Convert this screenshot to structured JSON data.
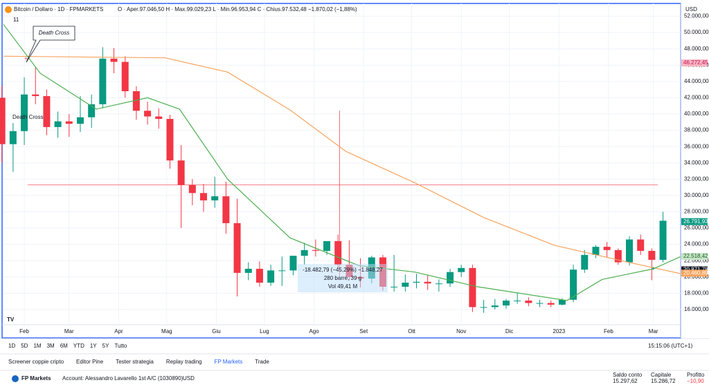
{
  "header": {
    "symbol": "Bitcoin / Dollaro · 1D · FPMARKETS",
    "ohlc": "O · Aper.97.046,50  H · Max.99.029,23  L · Min.96.953,94  C · Chius.97.532,48  −1.870,02 (−1,88%)",
    "indicators": "11",
    "currency": "USD"
  },
  "toolbar": {
    "ranges": [
      "1D",
      "5D",
      "1M",
      "3M",
      "6M",
      "YTD",
      "1Y",
      "5Y",
      "Tutto"
    ],
    "time": "15:15:06 (UTC+1)"
  },
  "tabs": [
    "Screener coppie cripto",
    "Editor Pine",
    "Tester strategia",
    "Replay trading",
    "FP Markets",
    "Trade"
  ],
  "account": {
    "broker": "FP Markets",
    "name": "Account: Alessandro Lavarello 1st A/C (1030890)",
    "currency": "USD",
    "fields": [
      {
        "label": "Saldo conto",
        "value": "15.297,62"
      },
      {
        "label": "Capitale",
        "value": "15.286,72"
      },
      {
        "label": "Profitto",
        "value": "−10,90"
      }
    ]
  },
  "chart_data": {
    "type": "candlestick",
    "up_color": "#089981",
    "down_color": "#f23645",
    "xlim": [
      18,
      441
    ],
    "ylim": [
      14550,
      52300
    ],
    "xticks": [
      {
        "value": 31,
        "label": "Feb"
      },
      {
        "value": 59,
        "label": "Mar"
      },
      {
        "value": 90,
        "label": "Apr"
      },
      {
        "value": 120,
        "label": "Mag"
      },
      {
        "value": 151,
        "label": "Giu"
      },
      {
        "value": 181,
        "label": "Lug"
      },
      {
        "value": 212,
        "label": "Ago"
      },
      {
        "value": 243,
        "label": "Set"
      },
      {
        "value": 273,
        "label": "Ott"
      },
      {
        "value": 304,
        "label": "Nov"
      },
      {
        "value": 334,
        "label": "Dic"
      },
      {
        "value": 365,
        "label": "2023"
      },
      {
        "value": 396,
        "label": "Feb"
      },
      {
        "value": 424,
        "label": "Mar"
      }
    ],
    "yticks": [
      {
        "value": 16000,
        "label": "16.000,00"
      },
      {
        "value": 18000,
        "label": "18.000,00"
      },
      {
        "value": 20000,
        "label": "20.000,00"
      },
      {
        "value": 22000,
        "label": "22.000,00"
      },
      {
        "value": 24000,
        "label": "24.000,00"
      },
      {
        "value": 26000,
        "label": "26.000,00"
      },
      {
        "value": 28000,
        "label": "28.000,00"
      },
      {
        "value": 30000,
        "label": "30.000,00"
      },
      {
        "value": 32000,
        "label": "32.000,00"
      },
      {
        "value": 34000,
        "label": "34.000,00"
      },
      {
        "value": 36000,
        "label": "36.000,00"
      },
      {
        "value": 38000,
        "label": "38.000,00"
      },
      {
        "value": 40000,
        "label": "40.000,00"
      },
      {
        "value": 42000,
        "label": "42.000,00"
      },
      {
        "value": 44000,
        "label": "44.000,00"
      },
      {
        "value": 46000,
        "label": "46.000,00"
      },
      {
        "value": 48000,
        "label": "48.000,00"
      },
      {
        "value": 50000,
        "label": "50.000,00"
      },
      {
        "value": 52000,
        "label": "52.000,00"
      }
    ],
    "grid": true,
    "x": [
      17,
      24,
      31,
      38,
      45,
      52,
      59,
      66,
      73,
      80,
      87,
      94,
      101,
      108,
      115,
      122,
      129,
      136,
      143,
      150,
      157,
      164,
      171,
      178,
      185,
      192,
      199,
      206,
      213,
      220,
      227,
      234,
      241,
      248,
      255,
      262,
      269,
      276,
      283,
      290,
      297,
      304,
      311,
      318,
      325,
      332,
      339,
      346,
      353,
      360,
      367,
      374,
      381,
      388,
      395,
      402,
      409,
      416,
      423,
      430
    ],
    "open": [
      42000,
      36300,
      37900,
      42400,
      42200,
      38400,
      39100,
      38800,
      39600,
      41200,
      46800,
      46400,
      42800,
      40400,
      39700,
      39400,
      34300,
      31300,
      30300,
      29400,
      29900,
      26600,
      20500,
      21000,
      19300,
      20800,
      20800,
      22600,
      23300,
      23200,
      24400,
      21500,
      20000,
      19800,
      22400,
      18800,
      18800,
      19300,
      19400,
      19200,
      19200,
      20600,
      21100,
      16300,
      16300,
      16500,
      17100,
      17100,
      16800,
      16800,
      16600,
      17200,
      20900,
      22700,
      23700,
      23300,
      21800,
      24600,
      23200,
      22100
    ],
    "high": [
      43500,
      38900,
      44500,
      45700,
      43000,
      40300,
      40000,
      42200,
      42400,
      48200,
      48100,
      47100,
      43400,
      41500,
      40700,
      39900,
      36200,
      32000,
      31400,
      32300,
      31700,
      29600,
      21800,
      21900,
      21500,
      22500,
      22500,
      24200,
      24600,
      24200,
      25200,
      24500,
      22300,
      22600,
      22700,
      22700,
      20300,
      20400,
      20200,
      19700,
      21000,
      21500,
      21500,
      17200,
      17300,
      17300,
      18000,
      17500,
      17200,
      17100,
      17400,
      21500,
      23300,
      23900,
      24300,
      23500,
      25000,
      25200,
      23500,
      28000
    ],
    "low": [
      34000,
      32900,
      36200,
      41200,
      37400,
      37100,
      37200,
      37800,
      38300,
      40700,
      45000,
      42000,
      39300,
      38700,
      38200,
      33300,
      26000,
      28800,
      28000,
      28500,
      25300,
      17600,
      19600,
      18800,
      18900,
      18900,
      20200,
      21500,
      22500,
      22700,
      21000,
      19600,
      18700,
      19200,
      18300,
      18200,
      18200,
      18600,
      18400,
      18200,
      18800,
      20000,
      15700,
      15600,
      16000,
      16100,
      16700,
      16400,
      16300,
      16300,
      16500,
      16900,
      20500,
      22300,
      22400,
      21500,
      21400,
      22700,
      19600,
      21800
    ],
    "close": [
      36300,
      37900,
      42400,
      42200,
      38400,
      39100,
      38800,
      39600,
      41200,
      46800,
      46400,
      42800,
      40400,
      39700,
      39400,
      34300,
      31300,
      30300,
      29400,
      29900,
      26600,
      20500,
      21000,
      19300,
      20800,
      20800,
      22600,
      23300,
      23200,
      24400,
      21500,
      20000,
      19800,
      22400,
      18800,
      18800,
      19300,
      19400,
      19200,
      19200,
      20600,
      21100,
      16300,
      16300,
      16500,
      17100,
      17100,
      16800,
      16800,
      16600,
      17200,
      20900,
      22700,
      23700,
      23300,
      21800,
      24600,
      23200,
      22100,
      26900
    ],
    "lines": [
      {
        "color": "#f7a35c",
        "x": [
          18,
          119,
          158,
          197,
          232,
          275,
          318,
          362,
          405,
          441
        ],
        "values": [
          47100,
          46900,
          45150,
          40500,
          35400,
          31550,
          27300,
          23900,
          21950,
          20400
        ]
      },
      {
        "color": "#4caf50",
        "x": [
          18,
          41,
          76,
          108,
          128,
          158,
          197,
          240,
          275,
          314,
          370,
          392,
          424,
          441
        ],
        "values": [
          51000,
          45000,
          40600,
          42000,
          40600,
          32000,
          24800,
          21400,
          20600,
          18800,
          17100,
          19700,
          21000,
          22500
        ]
      }
    ],
    "price_labels": [
      {
        "value": 46272.45,
        "label": "46.272,45",
        "color": "#f8b4c0",
        "text": "#c2185b"
      },
      {
        "value": 26791.93,
        "label": "26.791,93",
        "color": "#089981",
        "text": "#ffffff"
      },
      {
        "value": 22518.42,
        "label": "22.518,42",
        "color": "#c8e6c9",
        "text": "#1b5e20"
      },
      {
        "value": 20871.78,
        "label": "20.871,78",
        "color": "#131722",
        "text": "#ffffff"
      },
      {
        "value": 20460.89,
        "label": "20.460,89",
        "color": "#f7a35c",
        "text": "#ffffff"
      }
    ],
    "hline": 31300,
    "vline_x": 228,
    "annotations": [
      "Death Cross",
      "Death Cross"
    ],
    "measure": [
      "-18.482,79 (−45,29%) −1.848,27",
      "280 barre, 39 g",
      "Vol 49,41 M"
    ]
  }
}
